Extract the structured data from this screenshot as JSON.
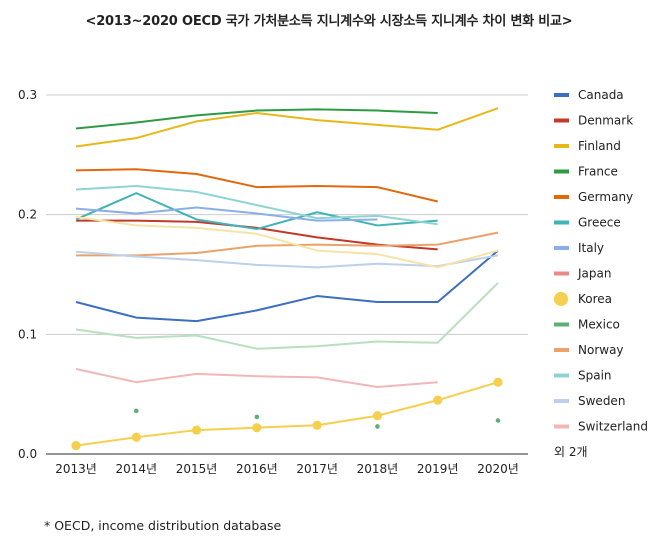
{
  "chart_data": {
    "type": "line",
    "title": "<2013~2020 OECD 국가 가처분소득 지니계수와 시장소득 지니계수 차이 변화 비교>",
    "footnote": "* OECD, income distribution database",
    "categories": [
      "2013년",
      "2014년",
      "2015년",
      "2016년",
      "2017년",
      "2018년",
      "2019년",
      "2020년"
    ],
    "ylim": [
      0,
      0.3
    ],
    "yticks": [
      "0.0",
      "0.1",
      "0.2",
      "0.3"
    ],
    "grid": true,
    "legend_position": "right",
    "legend_more": "외 2개",
    "series": [
      {
        "name": "Canada",
        "color": "#3d6fc0",
        "opacity": 1,
        "marker": "line",
        "values": [
          0.127,
          0.114,
          0.111,
          0.12,
          0.132,
          0.127,
          0.127,
          0.17
        ]
      },
      {
        "name": "Denmark",
        "color": "#c0392b",
        "opacity": 1,
        "marker": "line",
        "values": [
          0.195,
          0.195,
          0.194,
          0.189,
          0.181,
          0.175,
          0.171,
          null
        ]
      },
      {
        "name": "Finland",
        "color": "#e8b81a",
        "opacity": 1,
        "marker": "line",
        "values": [
          0.257,
          0.264,
          0.278,
          0.285,
          0.279,
          0.275,
          0.271,
          0.289
        ]
      },
      {
        "name": "France",
        "color": "#2e9a44",
        "opacity": 1,
        "marker": "line",
        "values": [
          0.272,
          0.277,
          0.283,
          0.287,
          0.288,
          0.287,
          0.285,
          null
        ]
      },
      {
        "name": "Germany",
        "color": "#e0690f",
        "opacity": 1,
        "marker": "line",
        "values": [
          0.237,
          0.238,
          0.234,
          0.223,
          0.224,
          0.223,
          0.211,
          null
        ]
      },
      {
        "name": "Greece",
        "color": "#41b3b8",
        "opacity": 1,
        "marker": "line",
        "values": [
          0.196,
          0.218,
          0.196,
          0.188,
          0.202,
          0.191,
          0.195,
          null
        ]
      },
      {
        "name": "Italy",
        "color": "#8caee6",
        "opacity": 1,
        "marker": "line",
        "values": [
          0.205,
          0.201,
          0.206,
          0.201,
          0.195,
          0.196,
          null,
          null
        ]
      },
      {
        "name": "Japan",
        "color": "#e88a8a",
        "opacity": 1,
        "marker": "line",
        "values": [
          null,
          null,
          null,
          null,
          null,
          null,
          null,
          null
        ]
      },
      {
        "name": "Korea",
        "color": "#f5cf4e",
        "opacity": 1,
        "marker": "dots",
        "values": [
          0.007,
          0.014,
          0.02,
          0.022,
          0.024,
          0.032,
          0.045,
          0.06
        ]
      },
      {
        "name": "Mexico",
        "color": "#5fae72",
        "opacity": 1,
        "marker": "scatter",
        "values": [
          null,
          0.036,
          null,
          0.031,
          null,
          0.023,
          null,
          0.028
        ]
      },
      {
        "name": "Norway",
        "color": "#eba26a",
        "opacity": 1,
        "marker": "line",
        "values": [
          0.166,
          0.166,
          0.168,
          0.174,
          0.175,
          0.174,
          0.175,
          0.185
        ]
      },
      {
        "name": "Spain",
        "color": "#8fd3d4",
        "opacity": 1,
        "marker": "line",
        "values": [
          0.221,
          0.224,
          0.219,
          0.208,
          0.197,
          0.199,
          0.192,
          null
        ]
      },
      {
        "name": "Sweden",
        "color": "#bcd0ee",
        "opacity": 1,
        "marker": "line",
        "values": [
          0.169,
          0.165,
          0.162,
          0.158,
          0.156,
          0.159,
          0.157,
          0.166
        ]
      },
      {
        "name": "Switzerland",
        "color": "#f1b6b6",
        "opacity": 1,
        "marker": "line",
        "values": [
          0.071,
          0.06,
          0.067,
          0.065,
          0.064,
          0.056,
          0.06,
          null
        ]
      },
      {
        "name": "Series15",
        "color": "#b7dfc0",
        "opacity": 1,
        "marker": "line",
        "legend": false,
        "values": [
          0.104,
          0.097,
          0.099,
          0.088,
          0.09,
          0.094,
          0.093,
          0.143
        ]
      },
      {
        "name": "Series16",
        "color": "#f6e3a7",
        "opacity": 1,
        "marker": "line",
        "legend": false,
        "values": [
          0.198,
          0.191,
          0.189,
          0.184,
          0.17,
          0.167,
          0.156,
          0.17
        ]
      }
    ]
  }
}
